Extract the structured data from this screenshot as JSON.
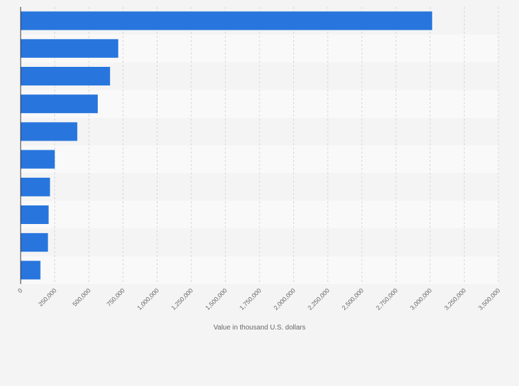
{
  "chart_data": {
    "type": "bar",
    "orientation": "horizontal",
    "xlabel": "Value in thousand U.S. dollars",
    "ylabel": "",
    "category_labels_visible": false,
    "xlim": [
      0,
      3500000
    ],
    "ticks": [
      0,
      250000,
      500000,
      750000,
      1000000,
      1250000,
      1500000,
      1750000,
      2000000,
      2250000,
      2500000,
      2750000,
      3000000,
      3250000,
      3500000
    ],
    "tick_labels": [
      "0",
      "250,000",
      "500,000",
      "750,000",
      "1,000,000",
      "1,250,000",
      "1,500,000",
      "1,750,000",
      "2,000,000",
      "2,250,000",
      "2,500,000",
      "2,750,000",
      "3,000,000",
      "3,250,000",
      "3,500,000"
    ],
    "values": [
      3015000,
      715000,
      655000,
      565000,
      415000,
      250000,
      215000,
      205000,
      200000,
      145000
    ],
    "grid": true,
    "colors": {
      "bar": "#2876dd",
      "background": "#f4f4f4",
      "plot_band_light": "#f9f9f9",
      "plot_band_dark": "#f4f4f4",
      "grid": "#d6d6d6",
      "axis": "#333333",
      "text": "#666666"
    }
  }
}
